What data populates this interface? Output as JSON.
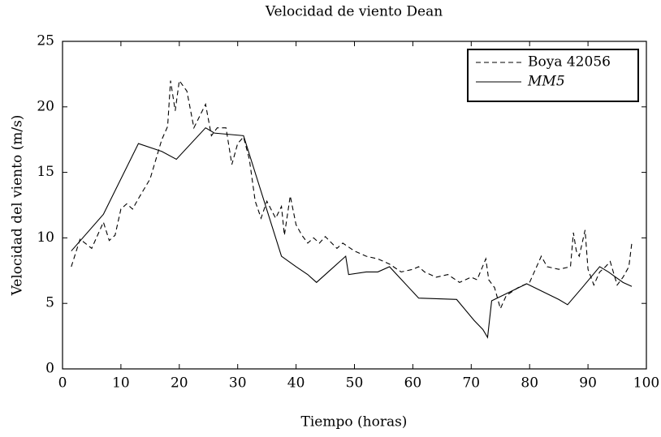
{
  "chart_data": {
    "type": "line",
    "title": "Velocidad de viento Dean",
    "x_label": "Tiempo (horas)",
    "y_label": "Velocidad del viento (m/s)",
    "xlim": [
      0,
      100
    ],
    "xticks": [
      0,
      10,
      20,
      30,
      40,
      50,
      60,
      70,
      80,
      90,
      100
    ],
    "ylim": [
      0,
      25
    ],
    "yticks": [
      0,
      5,
      10,
      15,
      20,
      25
    ],
    "legend": "upper right",
    "series": [
      {
        "name": "Boya 42056",
        "color": "#000000",
        "dash": "dashed",
        "x": [
          1.5,
          3,
          5,
          7,
          8,
          9,
          10,
          11,
          12,
          13,
          15,
          17,
          18,
          18.5,
          19.3,
          20,
          21.3,
          22.5,
          24.5,
          25.5,
          26.5,
          28,
          29,
          30,
          31,
          32,
          33,
          34,
          35,
          36.5,
          37.5,
          38,
          39,
          40,
          41,
          42,
          43,
          44,
          45,
          47,
          48,
          50,
          52,
          54,
          56,
          58,
          60,
          61,
          62,
          64,
          66,
          68,
          70,
          71,
          72.5,
          73,
          74,
          75,
          76,
          78,
          80,
          82,
          83,
          85,
          87,
          87.5,
          88,
          88.5,
          89.5,
          90,
          91,
          92,
          93,
          93.8,
          95,
          96,
          97,
          97.5
        ],
        "values": [
          7.8,
          9.9,
          9.2,
          11.2,
          9.8,
          10.2,
          12.2,
          12.6,
          12.2,
          13,
          14.5,
          17.5,
          18.5,
          22,
          19.7,
          22,
          21.2,
          18.4,
          20.2,
          17.8,
          18.4,
          18.4,
          15.6,
          17.2,
          17.7,
          16,
          12.8,
          11.5,
          12.8,
          11.5,
          12.4,
          10.2,
          13.2,
          11,
          10.2,
          9.6,
          10,
          9.6,
          10.1,
          9.2,
          9.6,
          9,
          8.6,
          8.4,
          8,
          7.4,
          7.6,
          7.8,
          7.4,
          7,
          7.2,
          6.6,
          7,
          6.8,
          8.4,
          6.8,
          6.2,
          4.6,
          5.6,
          6.2,
          6.6,
          8.6,
          7.8,
          7.6,
          7.8,
          10.4,
          9,
          8.6,
          10.6,
          7.6,
          6.4,
          7.4,
          7.8,
          8.2,
          6.4,
          7,
          7.8,
          9.6
        ]
      },
      {
        "name": "MM5",
        "color": "#000000",
        "dash": "solid",
        "x": [
          1.5,
          7,
          13,
          17,
          19.5,
          24.5,
          26,
          31,
          37.5,
          40,
          42,
          43.5,
          46,
          48.5,
          49,
          52,
          54,
          56,
          61,
          67.5,
          70.5,
          72,
          72.8,
          73.5,
          79.5,
          85,
          86.5,
          89,
          92,
          93.5,
          96,
          97.5
        ],
        "values": [
          9.0,
          11.8,
          17.2,
          16.6,
          16.0,
          18.4,
          18.0,
          17.8,
          8.6,
          7.8,
          7.2,
          6.6,
          7.6,
          8.6,
          7.2,
          7.4,
          7.4,
          7.8,
          5.4,
          5.3,
          3.7,
          3.0,
          2.4,
          5.2,
          6.5,
          5.3,
          4.9,
          6.2,
          7.8,
          7.4,
          6.6,
          6.3
        ]
      }
    ]
  }
}
